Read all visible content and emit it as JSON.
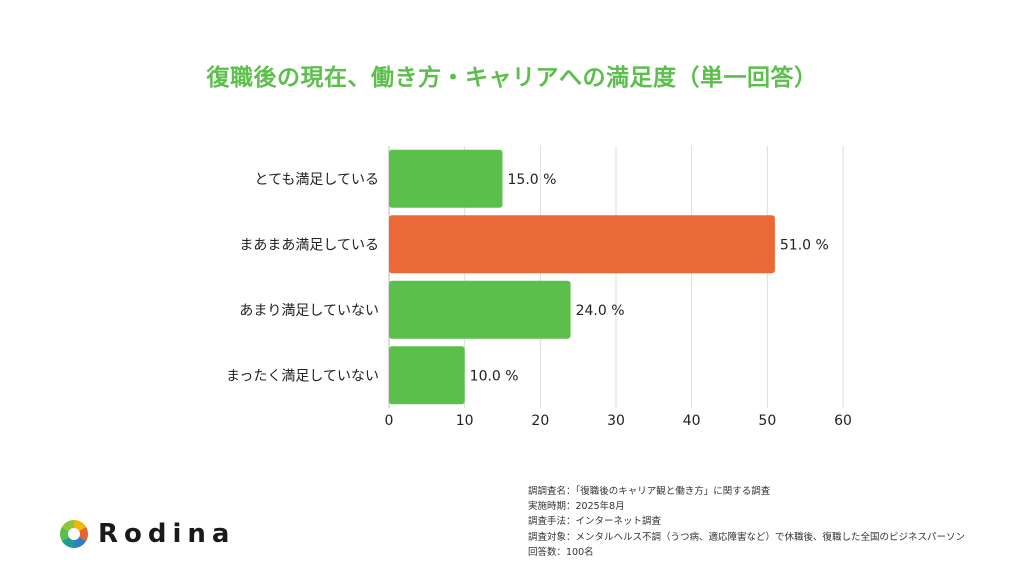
{
  "chart_data": {
    "type": "bar",
    "orientation": "horizontal",
    "title": "復職後の現在、働き方・キャリアへの満足度（単一回答）",
    "categories": [
      "とても満足している",
      "まあまあ満足している",
      "あまり満足していない",
      "まったく満足していない"
    ],
    "values": [
      15.0,
      51.0,
      24.0,
      10.0
    ],
    "value_labels": [
      "15.0 %",
      "51.0 %",
      "24.0 %",
      "10.0 %"
    ],
    "colors": [
      "#5cbf4c",
      "#ea6937",
      "#5cbf4c",
      "#5cbf4c"
    ],
    "highlight_index": 1,
    "xlim": [
      0,
      60
    ],
    "xticks": [
      0,
      10,
      20,
      30,
      40,
      50,
      60
    ],
    "grid": true,
    "xlabel": "",
    "ylabel": ""
  },
  "survey_notes": [
    "調調査名：「復職後のキャリア観と働き方」に関する調査",
    "実施時期：2025年8月",
    "調査手法：インターネット調査",
    "調査対象：メンタルヘルス不調（うつ病、適応障害など）で休職後、復職した全国のビジネスパーソン",
    "回答数：100名"
  ],
  "brand": {
    "name": "Rodina",
    "logo_icon": "rodina-ring-logo-icon"
  },
  "colors": {
    "title": "#5cbf4c",
    "bar_default": "#5cbf4c",
    "bar_highlight": "#ea6937",
    "grid": "#dddddd"
  }
}
